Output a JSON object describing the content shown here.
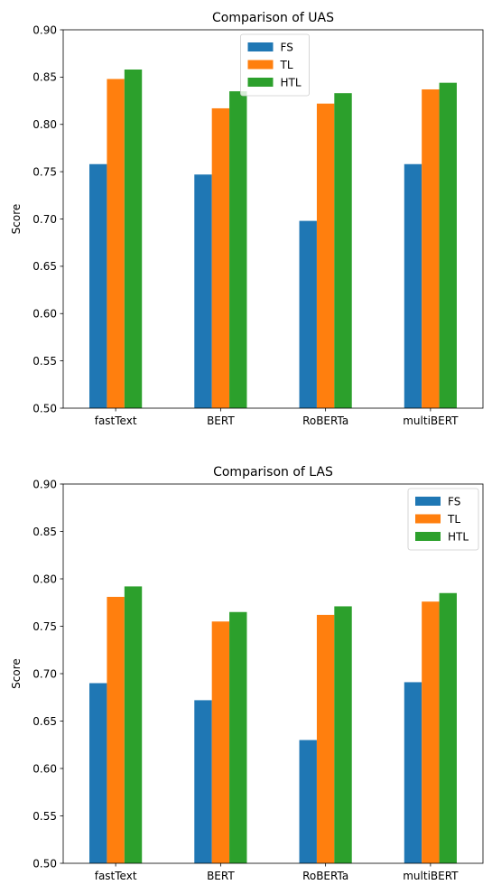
{
  "chart_data": [
    {
      "type": "bar",
      "title": "Comparison of UAS",
      "xlabel": "",
      "ylabel": "Score",
      "ylim": [
        0.5,
        0.9
      ],
      "yticks": [
        "0.50",
        "0.55",
        "0.60",
        "0.65",
        "0.70",
        "0.75",
        "0.80",
        "0.85",
        "0.90"
      ],
      "categories": [
        "fastText",
        "BERT",
        "RoBERTa",
        "multiBERT"
      ],
      "series": [
        {
          "name": "FS",
          "color": "#1f77b4",
          "values": [
            0.758,
            0.747,
            0.698,
            0.758
          ]
        },
        {
          "name": "TL",
          "color": "#ff7f0e",
          "values": [
            0.848,
            0.817,
            0.822,
            0.837
          ]
        },
        {
          "name": "HTL",
          "color": "#2ca02c",
          "values": [
            0.858,
            0.835,
            0.833,
            0.844
          ]
        }
      ],
      "legend_position": "upper center",
      "grid": false
    },
    {
      "type": "bar",
      "title": "Comparison of LAS",
      "xlabel": "",
      "ylabel": "Score",
      "ylim": [
        0.5,
        0.9
      ],
      "yticks": [
        "0.50",
        "0.55",
        "0.60",
        "0.65",
        "0.70",
        "0.75",
        "0.80",
        "0.85",
        "0.90"
      ],
      "categories": [
        "fastText",
        "BERT",
        "RoBERTa",
        "multiBERT"
      ],
      "series": [
        {
          "name": "FS",
          "color": "#1f77b4",
          "values": [
            0.69,
            0.672,
            0.63,
            0.691
          ]
        },
        {
          "name": "TL",
          "color": "#ff7f0e",
          "values": [
            0.781,
            0.755,
            0.762,
            0.776
          ]
        },
        {
          "name": "HTL",
          "color": "#2ca02c",
          "values": [
            0.792,
            0.765,
            0.771,
            0.785
          ]
        }
      ],
      "legend_position": "upper right",
      "grid": false
    }
  ]
}
